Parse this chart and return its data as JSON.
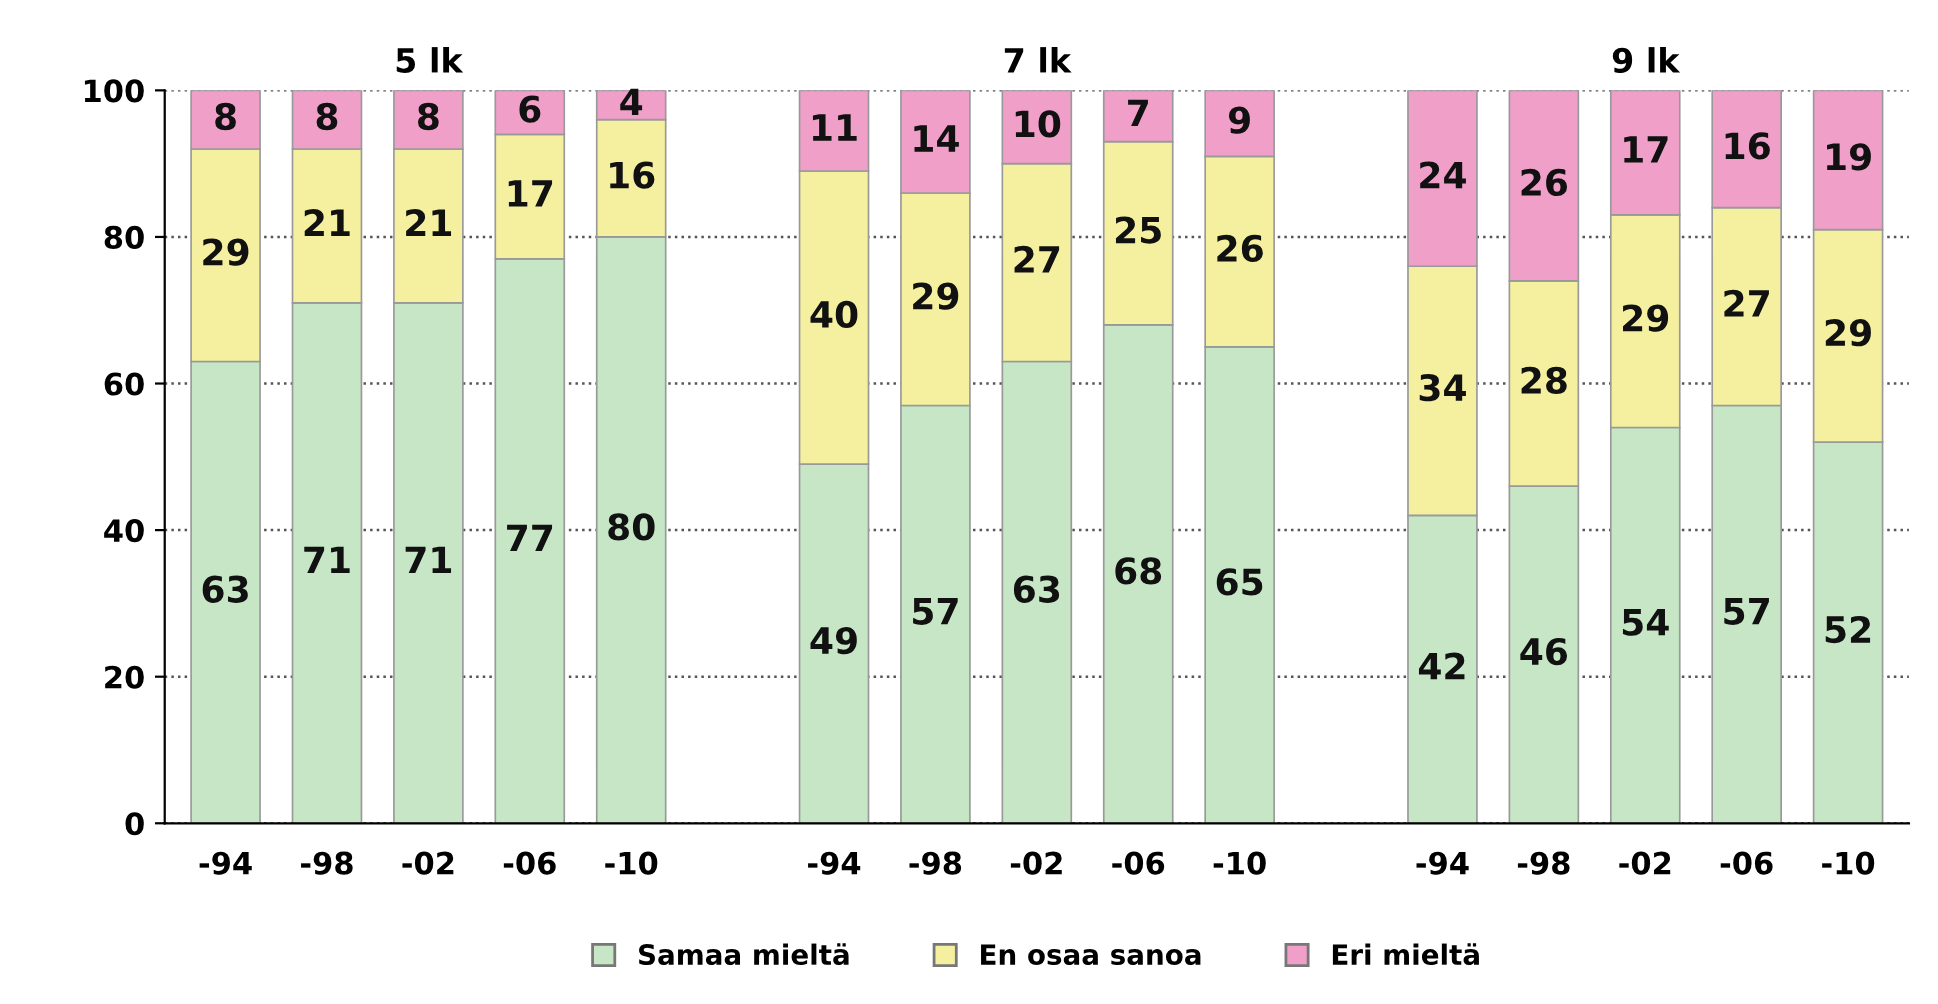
{
  "chart_data": {
    "type": "bar",
    "stacked": true,
    "data_labels": true,
    "grid": "y",
    "legend": "bottom",
    "categories": [
      "-94",
      "-98",
      "-02",
      "-06",
      "-10",
      null,
      "-94",
      "-98",
      "-02",
      "-06",
      "-10",
      null,
      "-94",
      "-98",
      "-02",
      "-06",
      "-10"
    ],
    "series": [
      {
        "name": "Samaa mieltä",
        "color": "#c6e6c6",
        "values": [
          63,
          71,
          71,
          77,
          80,
          null,
          49,
          57,
          63,
          68,
          65,
          null,
          42,
          46,
          54,
          57,
          52
        ]
      },
      {
        "name": "En osaa sanoa",
        "color": "#f5f0a0",
        "values": [
          29,
          21,
          21,
          17,
          16,
          null,
          40,
          29,
          27,
          25,
          26,
          null,
          34,
          28,
          29,
          27,
          29
        ]
      },
      {
        "name": "Eri mieltä",
        "color": "#f0a0c8",
        "values": [
          8,
          8,
          8,
          6,
          4,
          null,
          11,
          14,
          10,
          7,
          9,
          null,
          24,
          26,
          17,
          16,
          19
        ]
      }
    ],
    "ylim": [
      0,
      100
    ],
    "yticks": [
      0,
      20,
      40,
      60,
      80,
      100
    ],
    "annotations": [
      "5 lk",
      "7 lk",
      "9 lk"
    ]
  }
}
